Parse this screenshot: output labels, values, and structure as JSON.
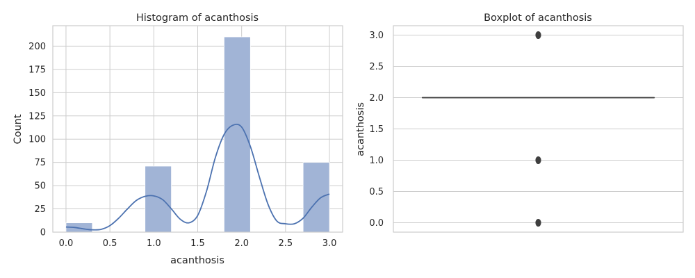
{
  "colors": {
    "bar_fill": "#a1b4d6",
    "kde_line": "#4c72b0",
    "box_line": "#3f3f3f",
    "outlier": "#3f3f3f",
    "grid": "#cccccc"
  },
  "chart_data": [
    {
      "type": "bar",
      "subtype": "histogram-with-kde",
      "title": "Histogram of acanthosis",
      "xlabel": "acanthosis",
      "ylabel": "Count",
      "xlim": [
        -0.15,
        3.15
      ],
      "ylim": [
        0,
        222
      ],
      "xticks": [
        0.0,
        0.5,
        1.0,
        1.5,
        2.0,
        2.5,
        3.0
      ],
      "xtick_labels": [
        "0.0",
        "0.5",
        "1.0",
        "1.5",
        "2.0",
        "2.5",
        "3.0"
      ],
      "yticks": [
        0,
        25,
        50,
        75,
        100,
        125,
        150,
        175,
        200
      ],
      "ytick_labels": [
        "0",
        "25",
        "50",
        "75",
        "100",
        "125",
        "150",
        "175",
        "200"
      ],
      "grid": true,
      "bins": [
        {
          "x0": 0.0,
          "x1": 0.3,
          "count": 10
        },
        {
          "x0": 0.9,
          "x1": 1.2,
          "count": 71
        },
        {
          "x0": 1.8,
          "x1": 2.1,
          "count": 210
        },
        {
          "x0": 2.7,
          "x1": 3.0,
          "count": 75
        }
      ],
      "kde": {
        "x": [
          0.0,
          0.1,
          0.2,
          0.3,
          0.4,
          0.5,
          0.6,
          0.7,
          0.8,
          0.9,
          1.0,
          1.1,
          1.2,
          1.3,
          1.4,
          1.5,
          1.6,
          1.7,
          1.8,
          1.9,
          2.0,
          2.1,
          2.2,
          2.3,
          2.4,
          2.5,
          2.6,
          2.7,
          2.8,
          2.9,
          3.0
        ],
        "y": [
          5.5,
          5,
          3.5,
          2.5,
          3,
          7,
          15,
          25,
          34,
          38.5,
          39,
          35,
          25,
          14,
          10,
          18,
          44,
          80,
          105,
          115,
          113,
          92,
          60,
          30,
          12,
          9,
          9,
          15,
          27,
          37,
          41
        ]
      }
    },
    {
      "type": "box",
      "title": "Boxplot of acanthosis",
      "xlabel": "",
      "ylabel": "acanthosis",
      "ylim": [
        -0.15,
        3.15
      ],
      "yticks": [
        0.0,
        0.5,
        1.0,
        1.5,
        2.0,
        2.5,
        3.0
      ],
      "ytick_labels": [
        "0.0",
        "0.5",
        "1.0",
        "1.5",
        "2.0",
        "2.5",
        "3.0"
      ],
      "grid": true,
      "stats": {
        "q1": 2.0,
        "median": 2.0,
        "q3": 2.0,
        "whisker_low": 2.0,
        "whisker_high": 2.0
      },
      "outliers": [
        0.0,
        1.0,
        3.0
      ]
    }
  ]
}
